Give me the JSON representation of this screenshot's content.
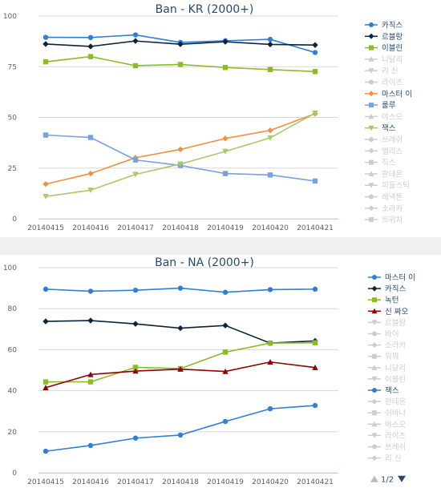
{
  "chart_data": [
    {
      "type": "line",
      "title": "Ban - KR (2000+)",
      "x": [
        "20140415",
        "20140416",
        "20140417",
        "20140418",
        "20140419",
        "20140420",
        "20140421"
      ],
      "ylim": [
        0,
        100
      ],
      "yticks": [
        0,
        25,
        50,
        75,
        100
      ],
      "grid": true,
      "legend_position": "right",
      "series": [
        {
          "name": "카직스",
          "color": "#2f7ed8",
          "marker": "circle",
          "visible": true,
          "values": [
            89.5,
            89.4,
            90.7,
            87.0,
            87.8,
            88.5,
            82.0
          ]
        },
        {
          "name": "르블랑",
          "color": "#0d233a",
          "marker": "diamond",
          "visible": true,
          "values": [
            86.2,
            85.0,
            87.7,
            86.1,
            87.3,
            86.0,
            85.7
          ]
        },
        {
          "name": "이블린",
          "color": "#8bbc21",
          "marker": "square",
          "visible": true,
          "values": [
            77.4,
            80.0,
            75.5,
            76.1,
            74.6,
            73.6,
            72.6
          ]
        },
        {
          "name": "니달리",
          "color": "#cccccc",
          "marker": "triangle",
          "visible": false
        },
        {
          "name": "리 신",
          "color": "#cccccc",
          "marker": "triangle-down",
          "visible": false
        },
        {
          "name": "라이즈",
          "color": "#cccccc",
          "marker": "circle",
          "visible": false
        },
        {
          "name": "마스터 이",
          "color": "#f28f43",
          "marker": "diamond",
          "visible": true,
          "values": [
            17.1,
            22.3,
            30.1,
            34.2,
            39.6,
            43.6,
            51.8
          ]
        },
        {
          "name": "룰루",
          "color": "#77a1e5",
          "marker": "square",
          "visible": true,
          "values": [
            41.3,
            40.1,
            29.0,
            26.3,
            22.3,
            21.6,
            18.6
          ]
        },
        {
          "name": "야스오",
          "color": "#cccccc",
          "marker": "triangle",
          "visible": false
        },
        {
          "name": "잭스",
          "color": "#a6c96a",
          "marker": "triangle-down",
          "visible": true,
          "values": [
            11.0,
            14.1,
            21.9,
            27.0,
            33.2,
            39.9,
            52.1
          ]
        },
        {
          "name": "쓰레쉬",
          "color": "#cccccc",
          "marker": "circle",
          "visible": false
        },
        {
          "name": "엘리스",
          "color": "#cccccc",
          "marker": "diamond",
          "visible": false
        },
        {
          "name": "직스",
          "color": "#cccccc",
          "marker": "square",
          "visible": false
        },
        {
          "name": "판테온",
          "color": "#cccccc",
          "marker": "triangle",
          "visible": false
        },
        {
          "name": "피들스틱",
          "color": "#cccccc",
          "marker": "triangle-down",
          "visible": false
        },
        {
          "name": "레넥톤",
          "color": "#cccccc",
          "marker": "circle",
          "visible": false
        },
        {
          "name": "소라카",
          "color": "#cccccc",
          "marker": "diamond",
          "visible": false
        },
        {
          "name": "트위치",
          "color": "#cccccc",
          "marker": "square",
          "visible": false
        }
      ]
    },
    {
      "type": "line",
      "title": "Ban - NA (2000+)",
      "x": [
        "20140415",
        "20140416",
        "20140417",
        "20140418",
        "20140419",
        "20140420",
        "20140421"
      ],
      "ylim": [
        0,
        100
      ],
      "yticks": [
        0,
        20,
        40,
        60,
        80,
        100
      ],
      "grid": true,
      "legend_position": "right",
      "pager": "1/2",
      "series": [
        {
          "name": "마스터 이",
          "color": "#2f7ed8",
          "marker": "circle",
          "visible": true,
          "values": [
            89.5,
            88.5,
            89.0,
            90.0,
            88.0,
            89.3,
            89.5
          ]
        },
        {
          "name": "카직스",
          "color": "#0d233a",
          "marker": "diamond",
          "visible": true,
          "values": [
            73.8,
            74.2,
            72.6,
            70.5,
            71.8,
            63.2,
            64.3
          ]
        },
        {
          "name": "녹턴",
          "color": "#8bbc21",
          "marker": "square",
          "visible": true,
          "values": [
            44.3,
            44.3,
            51.4,
            50.8,
            58.8,
            63.2,
            63.4
          ]
        },
        {
          "name": "신 짜오",
          "color": "#910000",
          "marker": "triangle",
          "visible": true,
          "values": [
            41.5,
            47.9,
            49.6,
            50.5,
            49.4,
            54.0,
            51.3
          ]
        },
        {
          "name": "르블랑",
          "color": "#cccccc",
          "marker": "triangle-down",
          "visible": false
        },
        {
          "name": "바이",
          "color": "#cccccc",
          "marker": "circle",
          "visible": false
        },
        {
          "name": "소라카",
          "color": "#cccccc",
          "marker": "diamond",
          "visible": false
        },
        {
          "name": "뭐뭐",
          "color": "#cccccc",
          "marker": "square",
          "visible": false
        },
        {
          "name": "니달리",
          "color": "#cccccc",
          "marker": "triangle",
          "visible": false
        },
        {
          "name": "이블린",
          "color": "#cccccc",
          "marker": "triangle-down",
          "visible": false
        },
        {
          "name": "잭스",
          "color": "#2f7ed8",
          "marker": "circle",
          "visible": true,
          "values": [
            10.5,
            13.3,
            16.9,
            18.4,
            25.0,
            31.2,
            32.8
          ]
        },
        {
          "name": "판테온",
          "color": "#cccccc",
          "marker": "diamond",
          "visible": false
        },
        {
          "name": "쉬바나",
          "color": "#cccccc",
          "marker": "square",
          "visible": false
        },
        {
          "name": "야스오",
          "color": "#cccccc",
          "marker": "triangle",
          "visible": false
        },
        {
          "name": "라이즈",
          "color": "#cccccc",
          "marker": "triangle-down",
          "visible": false
        },
        {
          "name": "쓰레쉬",
          "color": "#cccccc",
          "marker": "circle",
          "visible": false
        },
        {
          "name": "리 신",
          "color": "#cccccc",
          "marker": "diamond",
          "visible": false
        }
      ]
    }
  ]
}
